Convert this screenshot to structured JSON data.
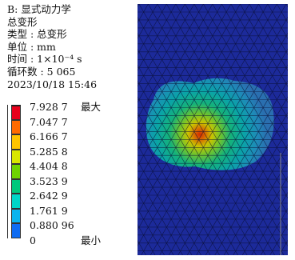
{
  "info": {
    "analysis": "B: 显式动力学",
    "result": "总变形",
    "type_line": "类型 : 总变形",
    "unit_line": "单位 : mm",
    "time_line": "时间 : 1×10⁻⁴ s",
    "cycles_line": "循环数 : 5 065",
    "datetime_line": "2023/10/18  15:46"
  },
  "legend": {
    "levels": [
      {
        "value": "7.928 7",
        "tag": "最大",
        "color": "#e8001c"
      },
      {
        "value": "7.047 7",
        "tag": "",
        "color": "#ff6a00"
      },
      {
        "value": "6.166 7",
        "tag": "",
        "color": "#ffc400"
      },
      {
        "value": "5.285 8",
        "tag": "",
        "color": "#d8e600"
      },
      {
        "value": "4.404 8",
        "tag": "",
        "color": "#6fd400"
      },
      {
        "value": "3.523 9",
        "tag": "",
        "color": "#00c87c"
      },
      {
        "value": "2.642 9",
        "tag": "",
        "color": "#00d6c8"
      },
      {
        "value": "1.761 9",
        "tag": "",
        "color": "#0ab4ee"
      },
      {
        "value": "0.880 96",
        "tag": "",
        "color": "#0f6cf2"
      },
      {
        "value": "0",
        "tag": "最小",
        "color": "#1b2ff0"
      }
    ]
  },
  "colors": {
    "plate": "#1c2a9a",
    "mesh_line": "#0a0f33"
  }
}
